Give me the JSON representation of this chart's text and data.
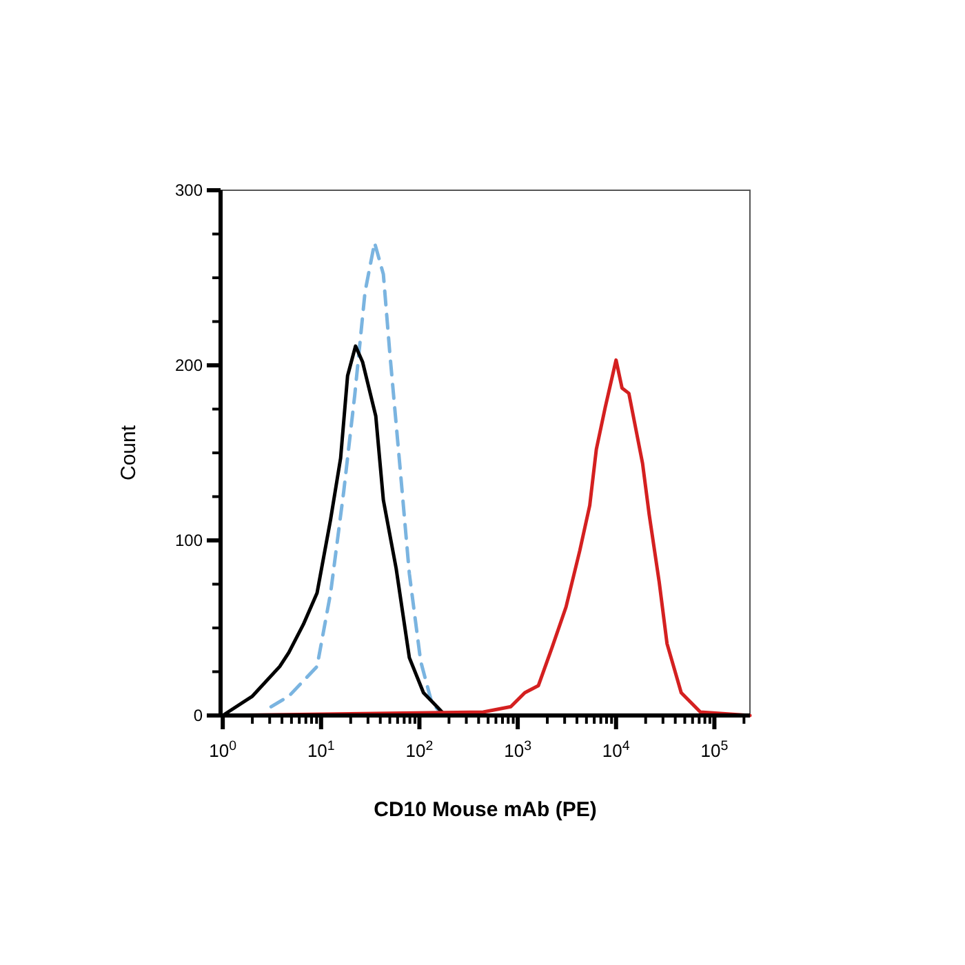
{
  "chart_data": {
    "type": "line",
    "xlabel": "CD10 Mouse mAb (PE)",
    "ylabel": "Count",
    "log": "x",
    "grid": false,
    "xlim": [
      0.95,
      230000
    ],
    "ylim": [
      0,
      300
    ],
    "xticks": [
      {
        "value": 1,
        "label": "10$^{0}$"
      },
      {
        "value": 2,
        "label": null
      },
      {
        "value": 3,
        "label": null
      },
      {
        "value": 4,
        "label": null
      },
      {
        "value": 5,
        "label": null
      },
      {
        "value": 6,
        "label": null
      },
      {
        "value": 7,
        "label": null
      },
      {
        "value": 8,
        "label": null
      },
      {
        "value": 9,
        "label": null
      },
      {
        "value": 10,
        "label": "10$^{1}$"
      },
      {
        "value": 20,
        "label": null
      },
      {
        "value": 30,
        "label": null
      },
      {
        "value": 40,
        "label": null
      },
      {
        "value": 50,
        "label": null
      },
      {
        "value": 60,
        "label": null
      },
      {
        "value": 70,
        "label": null
      },
      {
        "value": 80,
        "label": null
      },
      {
        "value": 90,
        "label": null
      },
      {
        "value": 100,
        "label": "10$^{2}$"
      },
      {
        "value": 200,
        "label": null
      },
      {
        "value": 300,
        "label": null
      },
      {
        "value": 400,
        "label": null
      },
      {
        "value": 500,
        "label": null
      },
      {
        "value": 600,
        "label": null
      },
      {
        "value": 700,
        "label": null
      },
      {
        "value": 800,
        "label": null
      },
      {
        "value": 900,
        "label": null
      },
      {
        "value": 1000,
        "label": "10$^{3}$"
      },
      {
        "value": 2000,
        "label": null
      },
      {
        "value": 3000,
        "label": null
      },
      {
        "value": 4000,
        "label": null
      },
      {
        "value": 5000,
        "label": null
      },
      {
        "value": 6000,
        "label": null
      },
      {
        "value": 7000,
        "label": null
      },
      {
        "value": 8000,
        "label": null
      },
      {
        "value": 9000,
        "label": null
      },
      {
        "value": 10000,
        "label": "10$^{4}$"
      },
      {
        "value": 20000,
        "label": null
      },
      {
        "value": 30000,
        "label": null
      },
      {
        "value": 40000,
        "label": null
      },
      {
        "value": 50000,
        "label": null
      },
      {
        "value": 60000,
        "label": null
      },
      {
        "value": 70000,
        "label": null
      },
      {
        "value": 80000,
        "label": null
      },
      {
        "value": 90000,
        "label": null
      },
      {
        "value": 100000,
        "label": "10$^{5}$"
      },
      {
        "value": 200000,
        "label": null
      }
    ],
    "yticks": [
      0,
      {
        "value": 25,
        "label": null
      },
      {
        "value": 50,
        "label": null
      },
      {
        "value": 75,
        "label": null
      },
      100,
      {
        "value": 125,
        "label": null
      },
      {
        "value": 150,
        "label": null
      },
      {
        "value": 175,
        "label": null
      },
      200,
      {
        "value": 225,
        "label": null
      },
      {
        "value": 250,
        "label": null
      },
      {
        "value": 275,
        "label": null
      },
      300
    ],
    "series": [
      {
        "color": "#7ab4e0",
        "line_style": "dashed",
        "x": [
          3.1,
          4.7,
          9.1,
          12.5,
          17,
          22,
          28,
          35,
          43,
          50,
          63,
          79,
          103,
          134,
          170
        ],
        "values": [
          5,
          11,
          28,
          70,
          128,
          183,
          242,
          270,
          252,
          207,
          144,
          81,
          31,
          7,
          1
        ]
      },
      {
        "color": "#000000",
        "line_style": "solid",
        "x": [
          1.0,
          2.0,
          3.8,
          4.7,
          6.6,
          9.1,
          12.5,
          15.8,
          18.6,
          22.4,
          26.4,
          36,
          43,
          58,
          79,
          110,
          170
        ],
        "values": [
          0,
          11,
          28,
          36,
          52,
          70,
          112,
          147,
          194,
          211,
          202,
          171,
          123,
          84,
          33,
          13,
          2
        ]
      },
      {
        "color": "#d42020",
        "line_style": "solid",
        "x": [
          0.95,
          446,
          850,
          1180,
          1620,
          2240,
          3100,
          4270,
          5400,
          6300,
          7760,
          10000,
          11500,
          13500,
          18600,
          21700,
          27500,
          33000,
          46000,
          72000,
          230000
        ],
        "values": [
          0,
          2,
          5,
          13,
          17,
          39,
          62,
          94,
          120,
          152,
          176,
          203,
          187,
          184,
          144,
          115,
          76,
          41,
          13,
          2,
          0
        ]
      }
    ]
  }
}
